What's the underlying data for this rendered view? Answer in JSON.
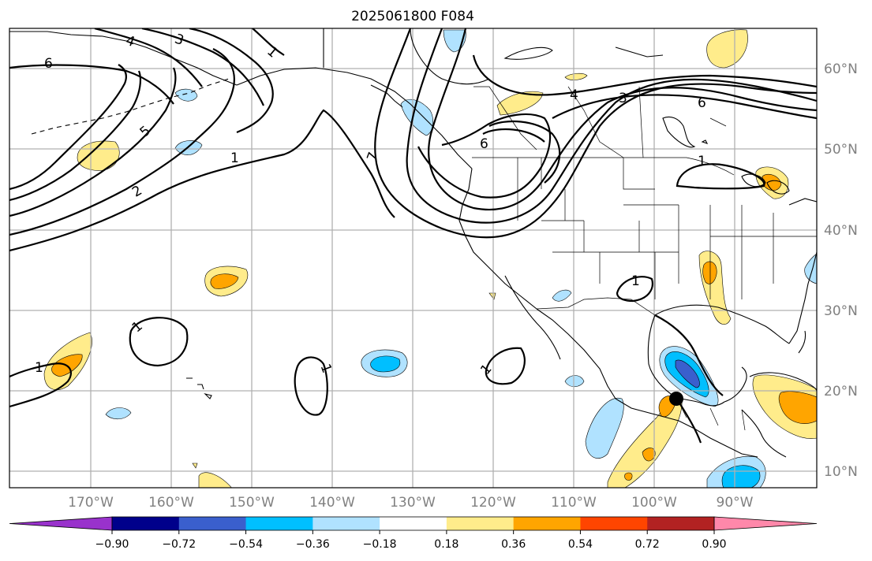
{
  "title": "2025061800 F084",
  "lat_labels": [
    "60°N",
    "50°N",
    "40°N",
    "30°N",
    "20°N",
    "10°N"
  ],
  "lon_labels": [
    "170°W",
    "160°W",
    "150°W",
    "140°W",
    "130°W",
    "120°W",
    "110°W",
    "100°W",
    "90°W"
  ],
  "colorbar": {
    "ticks": [
      "−0.90",
      "−0.72",
      "−0.54",
      "−0.36",
      "−0.18",
      "0.18",
      "0.36",
      "0.54",
      "0.72",
      "0.90"
    ],
    "colors": [
      "#9932cc",
      "#00008b",
      "#3a5fcd",
      "#00bfff",
      "#b0e2ff",
      "#ffffff",
      "#ffec8b",
      "#ffa500",
      "#ff4500",
      "#b22222",
      "#ff88aa"
    ]
  },
  "contour_labels": [
    "6",
    "4",
    "3",
    "1",
    "5",
    "2",
    "1",
    "7",
    "6",
    "4",
    "3",
    "6",
    "1",
    "1",
    "1",
    "1",
    "1",
    "1"
  ],
  "colors": {
    "light_blue": "#b0e2ff",
    "blue": "#00bfff",
    "dark_blue": "#3a5fcd",
    "yellow": "#ffec8b",
    "orange": "#ffa500"
  },
  "map": {
    "extent_lon": [
      -180,
      -80
    ],
    "extent_lat": [
      8,
      65
    ],
    "grid": true
  }
}
